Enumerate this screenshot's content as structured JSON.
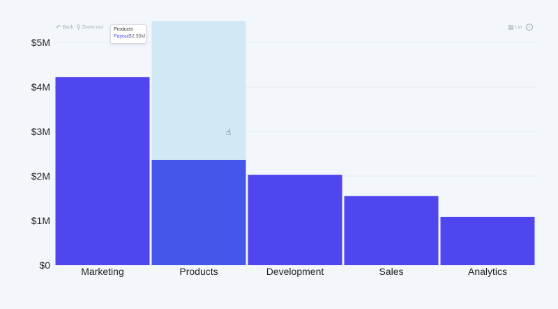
{
  "toolbar": {
    "back_label": "Back",
    "zoom_out_label": "Zoom-out",
    "scale_label": "Lin",
    "back_icon": "back-arrow-icon",
    "zoom_icon": "magnifier-icon",
    "table_icon": "table-icon",
    "info_icon": "info-icon"
  },
  "tooltip": {
    "title": "Products",
    "series_label": "Payout",
    "value": "$2.36M"
  },
  "colors": {
    "bar": "#5046f0",
    "bar_hover": "#4457ea",
    "highlight": "#d1e8f5",
    "grid": "#e3e8f0",
    "axis_text": "#222222"
  },
  "chart_data": {
    "type": "bar",
    "categories": [
      "Marketing",
      "Products",
      "Development",
      "Sales",
      "Analytics"
    ],
    "values": [
      4.22,
      2.36,
      2.03,
      1.55,
      1.08
    ],
    "ylim": [
      0,
      5
    ],
    "yticks": [
      0,
      1,
      2,
      3,
      4,
      5
    ],
    "ytick_labels": [
      "$0",
      "$1M",
      "$2M",
      "$3M",
      "$4M",
      "$5M"
    ],
    "highlighted_category": "Products",
    "grid": true,
    "title": "",
    "xlabel": "",
    "ylabel": ""
  }
}
